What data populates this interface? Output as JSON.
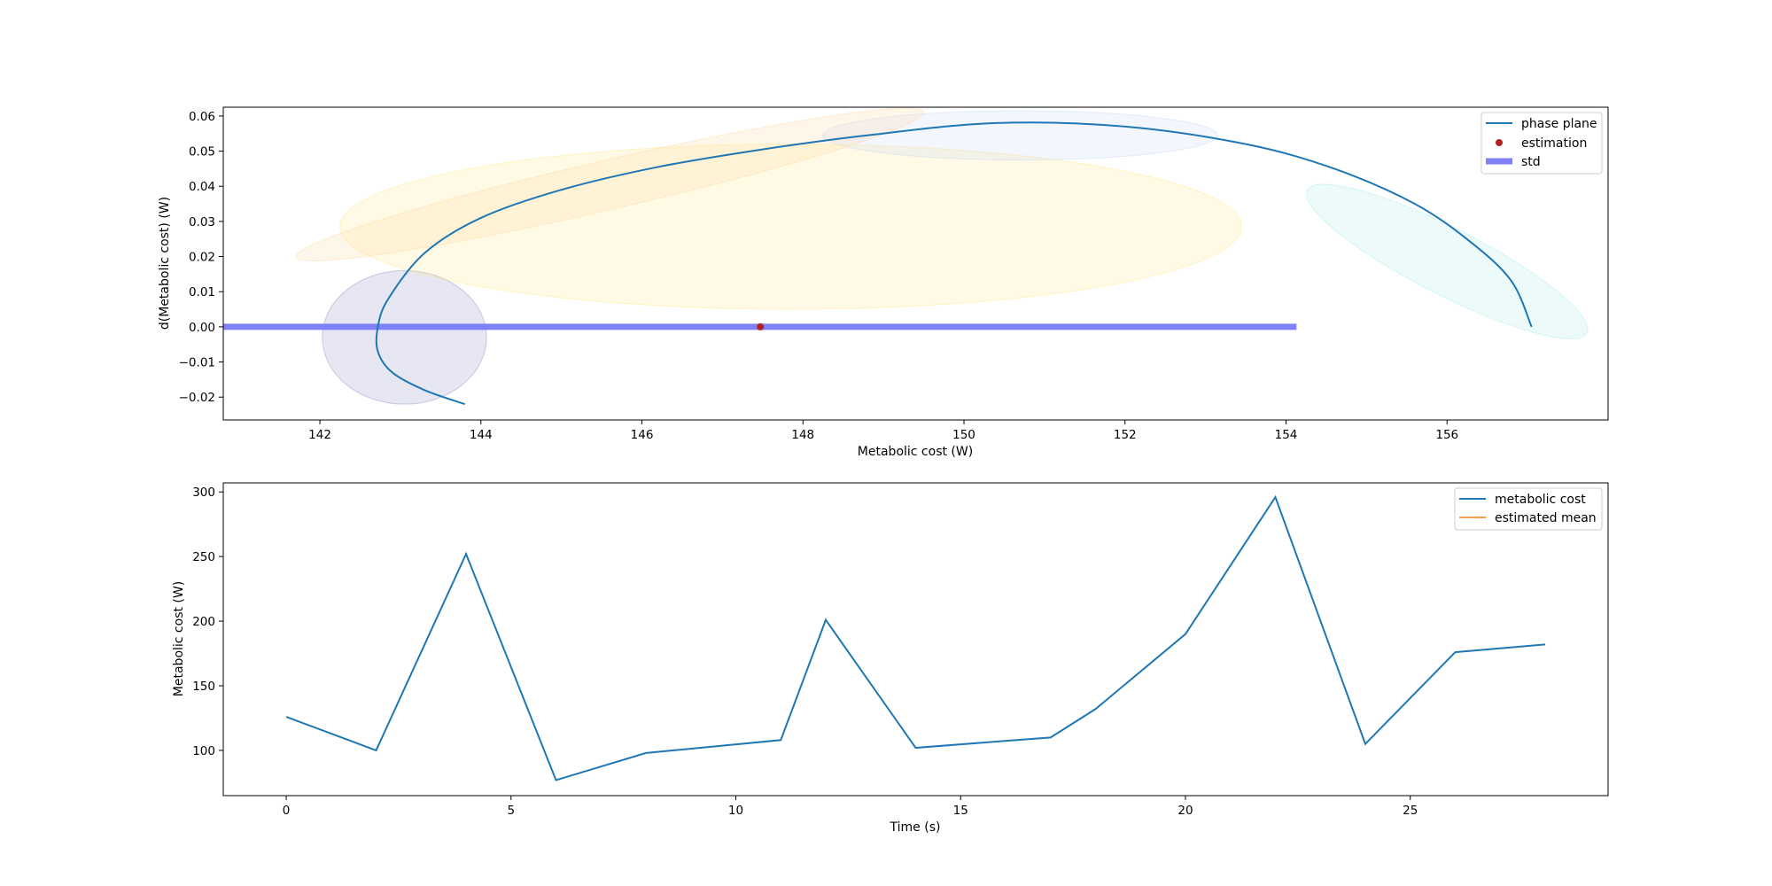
{
  "chart_data": [
    {
      "type": "line",
      "subtype": "phase-plane",
      "title": "",
      "xlabel": "Metabolic cost (W)",
      "ylabel": "d(Metabolic cost) (W)",
      "xlim": [
        140.8,
        158.0
      ],
      "ylim": [
        -0.0265,
        0.0625
      ],
      "xticks": [
        142,
        144,
        146,
        148,
        150,
        152,
        154,
        156
      ],
      "yticks": [
        -0.02,
        -0.01,
        0.0,
        0.01,
        0.02,
        0.03,
        0.04,
        0.05,
        0.06
      ],
      "xtick_labels": [
        "142",
        "144",
        "146",
        "148",
        "150",
        "152",
        "154",
        "156"
      ],
      "ytick_labels": [
        "−0.02",
        "−0.01",
        "0.00",
        "0.01",
        "0.02",
        "0.03",
        "0.04",
        "0.05",
        "0.06"
      ],
      "grid": false,
      "legend_position": "top-right",
      "legend": [
        {
          "label": "phase plane",
          "kind": "line",
          "color": "#1f77b4"
        },
        {
          "label": "estimation",
          "kind": "marker",
          "color": "#b22222"
        },
        {
          "label": "std",
          "kind": "thick-line",
          "color": "#8080f8"
        }
      ],
      "series": [
        {
          "name": "phase plane",
          "color": "#1f77b4",
          "x": [
            143.8,
            143.3,
            142.9,
            142.72,
            142.72,
            142.85,
            143.3,
            144.0,
            145.0,
            146.2,
            147.5,
            148.8,
            150.4,
            152.0,
            153.5,
            154.6,
            155.6,
            156.3,
            156.8,
            157.05
          ],
          "y": [
            -0.022,
            -0.018,
            -0.013,
            -0.007,
            0.0,
            0.008,
            0.021,
            0.031,
            0.039,
            0.0455,
            0.0505,
            0.0545,
            0.058,
            0.057,
            0.052,
            0.045,
            0.035,
            0.024,
            0.013,
            0.0
          ]
        }
      ],
      "estimation": {
        "x": 147.47,
        "y": 0.0,
        "color": "#b22222"
      },
      "std": {
        "x_start": 140.8,
        "x_end": 154.13,
        "y": 0.0,
        "color": "#8080f8"
      },
      "ellipses": [
        {
          "cx": 143.05,
          "cy": -0.003,
          "rx": 1.02,
          "ry": 0.019,
          "angle": 0,
          "color": "#9090c8"
        },
        {
          "cx": 147.85,
          "cy": 0.0285,
          "rx": 5.6,
          "ry": 0.0235,
          "angle": 0,
          "color": "#ffe88a"
        },
        {
          "cx": 150.7,
          "cy": 0.0545,
          "rx": 2.45,
          "ry": 0.007,
          "angle": 0,
          "color": "#c8d8f8"
        },
        {
          "cx": 145.6,
          "cy": 0.0405,
          "rx": 4.0,
          "ry": 0.007,
          "angle": -13,
          "color": "#ffd6a0"
        },
        {
          "cx": 156.0,
          "cy": 0.0186,
          "rx": 1.95,
          "ry": 0.0095,
          "angle": 27,
          "color": "#a8ece6"
        }
      ]
    },
    {
      "type": "line",
      "title": "",
      "xlabel": "Time (s)",
      "ylabel": "Metabolic cost (W)",
      "xlim": [
        -1.4,
        29.4
      ],
      "ylim": [
        65,
        307
      ],
      "xticks": [
        0,
        5,
        10,
        15,
        20,
        25
      ],
      "yticks": [
        100,
        150,
        200,
        250,
        300
      ],
      "xtick_labels": [
        "0",
        "5",
        "10",
        "15",
        "20",
        "25"
      ],
      "ytick_labels": [
        "100",
        "150",
        "200",
        "250",
        "300"
      ],
      "grid": false,
      "legend_position": "top-right",
      "legend": [
        {
          "label": "metabolic cost",
          "kind": "line",
          "color": "#1f77b4"
        },
        {
          "label": "estimated mean",
          "kind": "line",
          "color": "#ff7f0e"
        }
      ],
      "series": [
        {
          "name": "metabolic cost",
          "color": "#1f77b4",
          "x": [
            0,
            2,
            4,
            6,
            8,
            11,
            12,
            14,
            17,
            18,
            20,
            22,
            24,
            26,
            28
          ],
          "y": [
            126,
            100,
            252,
            77,
            98,
            108,
            201,
            102,
            110,
            132,
            190,
            296,
            105,
            176,
            182
          ]
        },
        {
          "name": "estimated mean",
          "color": "#ff7f0e",
          "x": [],
          "y": []
        }
      ]
    }
  ]
}
